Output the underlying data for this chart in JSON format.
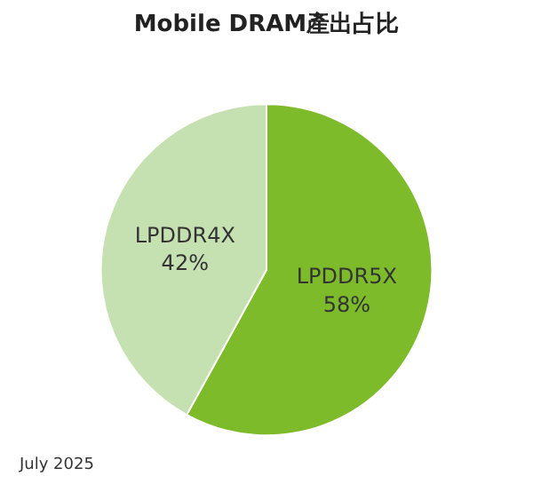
{
  "chart_data": {
    "type": "pie",
    "title": "Mobile DRAM產出占比",
    "categories": [
      "LPDDR5X",
      "LPDDR4X"
    ],
    "values": [
      58,
      42
    ],
    "value_labels": [
      "58%",
      "42%"
    ],
    "colors": [
      "#7dbb2b",
      "#c6e1b1"
    ],
    "legend": false,
    "annotations": [
      "July 2025"
    ]
  }
}
